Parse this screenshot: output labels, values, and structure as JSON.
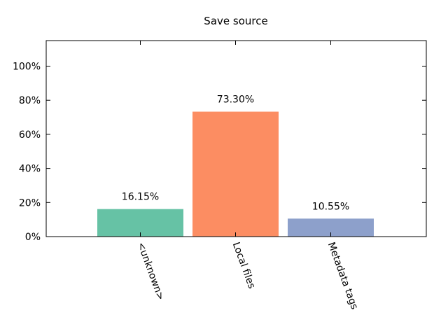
{
  "chart_data": {
    "type": "bar",
    "title": "Save source",
    "xlabel": "",
    "ylabel": "",
    "categories": [
      "<unknown>",
      "Local files",
      "Metadata tags"
    ],
    "values": [
      16.15,
      73.3,
      10.55
    ],
    "value_labels": [
      "16.15%",
      "73.30%",
      "10.55%"
    ],
    "ylim": [
      0,
      115
    ],
    "yticks": [
      0,
      20,
      40,
      60,
      80,
      100
    ],
    "ytick_labels": [
      "0%",
      "20%",
      "40%",
      "60%",
      "80%",
      "100%"
    ],
    "colors": [
      "#66c2a5",
      "#fc8d62",
      "#8da0cb"
    ],
    "grid": false,
    "legend": "none"
  }
}
